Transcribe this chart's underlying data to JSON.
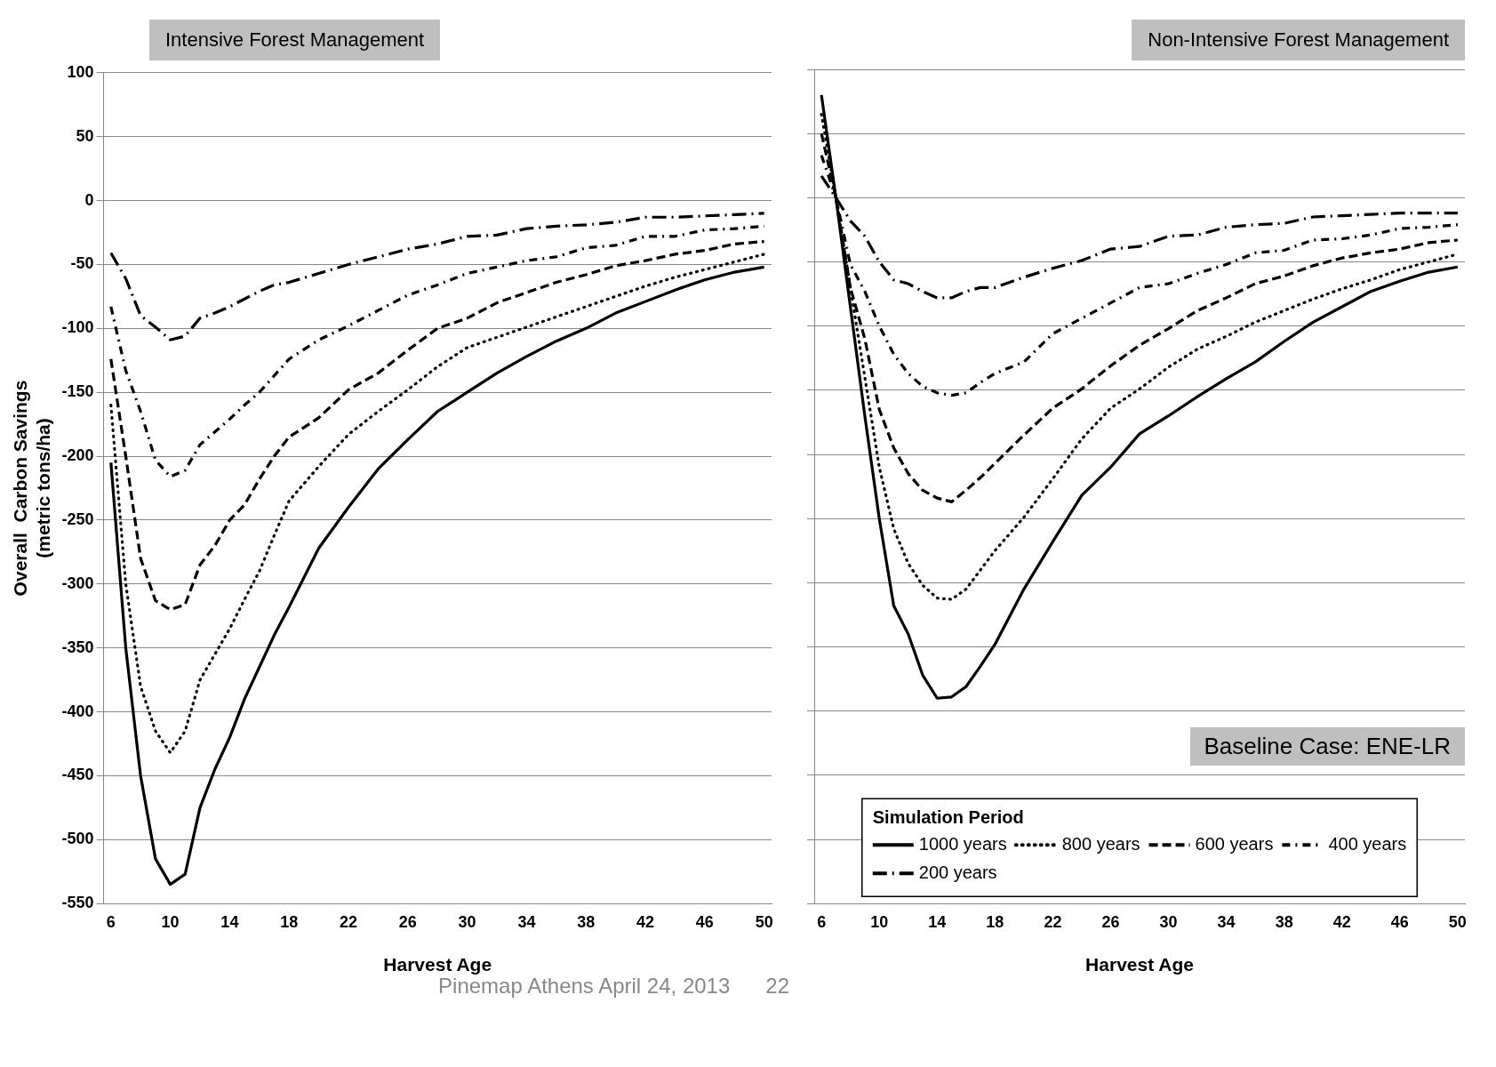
{
  "chart_data": [
    {
      "type": "line",
      "title": "Intensive Forest Management",
      "xlabel": "Harvest Age",
      "ylabel": "Overall  Carbon Savings\n(metric tons/ha)",
      "x": [
        6,
        7,
        8,
        9,
        10,
        11,
        12,
        13,
        14,
        15,
        16,
        17,
        18,
        20,
        22,
        24,
        26,
        28,
        30,
        32,
        34,
        36,
        38,
        40,
        42,
        44,
        46,
        48,
        50
      ],
      "xlim": [
        5.5,
        50.5
      ],
      "xticks": [
        6,
        10,
        14,
        18,
        22,
        26,
        30,
        34,
        38,
        42,
        46,
        50
      ],
      "ylim": [
        -550,
        100
      ],
      "yticks": [
        -550,
        -500,
        -450,
        -400,
        -350,
        -300,
        -250,
        -200,
        -150,
        -100,
        -50,
        0,
        50,
        100
      ],
      "grid": "y",
      "annotations": [
        "Pinemap Athens April 24, 2013",
        "22"
      ],
      "series": [
        {
          "color": "#000000",
          "line_style": "solid",
          "values": [
            -205,
            -350,
            -450,
            -515,
            -535,
            -527,
            -475,
            -445,
            -420,
            -390,
            -365,
            -340,
            -318,
            -272,
            -240,
            -210,
            -187,
            -165,
            -150,
            -135,
            -122,
            -110,
            -100,
            -88,
            -79,
            -70,
            -62,
            -56,
            -52
          ]
        },
        {
          "color": "#000000",
          "line_style": "dotted",
          "values": [
            -160,
            -300,
            -380,
            -415,
            -432,
            -415,
            -375,
            -355,
            -335,
            -312,
            -290,
            -262,
            -235,
            -208,
            -183,
            -165,
            -148,
            -130,
            -115,
            -107,
            -99,
            -91,
            -83,
            -75,
            -67,
            -60,
            -54,
            -48,
            -42
          ]
        },
        {
          "color": "#000000",
          "line_style": "dashed",
          "values": [
            -124,
            -200,
            -280,
            -313,
            -320,
            -316,
            -285,
            -270,
            -250,
            -238,
            -218,
            -200,
            -185,
            -170,
            -148,
            -135,
            -117,
            -100,
            -92,
            -80,
            -72,
            -64,
            -58,
            -51,
            -47,
            -42,
            -39,
            -34,
            -32
          ]
        },
        {
          "color": "#000000",
          "line_style": "dashdot",
          "values": [
            -83,
            -133,
            -165,
            -203,
            -216,
            -211,
            -191,
            -181,
            -171,
            -160,
            -150,
            -137,
            -124,
            -109,
            -98,
            -86,
            -74,
            -66,
            -57,
            -52,
            -47,
            -44,
            -37,
            -35,
            -28,
            -28,
            -23,
            -22,
            -20
          ]
        },
        {
          "color": "#000000",
          "line_style": "longdashdot",
          "values": [
            -41,
            -61,
            -90,
            -99,
            -109,
            -106,
            -92,
            -88,
            -83,
            -77,
            -71,
            -66,
            -64,
            -57,
            -50,
            -44,
            -38,
            -34,
            -28,
            -27,
            -22,
            -20,
            -19,
            -17,
            -13,
            -13,
            -12,
            -11,
            -10
          ]
        }
      ]
    },
    {
      "type": "line",
      "title": "Non-Intensive Forest Management",
      "xlabel": "Harvest Age",
      "x": [
        6,
        7,
        8,
        9,
        10,
        11,
        12,
        13,
        14,
        15,
        16,
        17,
        18,
        20,
        22,
        24,
        26,
        28,
        30,
        32,
        34,
        36,
        38,
        40,
        42,
        44,
        46,
        48,
        50
      ],
      "xlim": [
        5.5,
        50.5
      ],
      "xticks": [
        6,
        10,
        14,
        18,
        22,
        26,
        30,
        34,
        38,
        42,
        46,
        50
      ],
      "ylim": [
        -550,
        100
      ],
      "yticks": [
        -550,
        -500,
        -450,
        -400,
        -350,
        -300,
        -250,
        -200,
        -150,
        -100,
        -50,
        0,
        50,
        100
      ],
      "tick_labels": "x",
      "grid": "y",
      "legend": "bottom",
      "legend_title": "Simulation Period",
      "annotations": [
        "Baseline Case:  ENE-LR"
      ],
      "series": [
        {
          "name": "1000 years",
          "color": "#000000",
          "line_style": "solid",
          "values": [
            80,
            0,
            -85,
            -170,
            -250,
            -318,
            -340,
            -372,
            -390,
            -389,
            -381,
            -365,
            -348,
            -305,
            -268,
            -232,
            -210,
            -184,
            -170,
            -155,
            -141,
            -128,
            -112,
            -97,
            -85,
            -73,
            -65,
            -58,
            -54
          ]
        },
        {
          "name": "800 years",
          "color": "#000000",
          "line_style": "dotted",
          "values": [
            65,
            0,
            -70,
            -140,
            -210,
            -258,
            -285,
            -302,
            -312,
            -313,
            -305,
            -290,
            -275,
            -249,
            -219,
            -188,
            -164,
            -149,
            -132,
            -118,
            -108,
            -97,
            -88,
            -79,
            -71,
            -64,
            -56,
            -50,
            -44
          ]
        },
        {
          "name": "600 years",
          "color": "#000000",
          "line_style": "dashed",
          "values": [
            50,
            0,
            -70,
            -110,
            -165,
            -195,
            -215,
            -228,
            -234,
            -237,
            -228,
            -218,
            -207,
            -185,
            -164,
            -149,
            -131,
            -115,
            -102,
            -88,
            -78,
            -67,
            -61,
            -53,
            -47,
            -43,
            -40,
            -35,
            -33
          ]
        },
        {
          "name": "400 years",
          "color": "#000000",
          "line_style": "dashdot",
          "values": [
            33,
            0,
            -52,
            -73,
            -100,
            -122,
            -137,
            -147,
            -152,
            -154,
            -152,
            -144,
            -137,
            -128,
            -106,
            -94,
            -82,
            -70,
            -67,
            -59,
            -52,
            -43,
            -41,
            -33,
            -32,
            -29,
            -24,
            -23,
            -21
          ]
        },
        {
          "name": "200 years",
          "color": "#000000",
          "line_style": "longdashdot",
          "values": [
            17,
            0,
            -18,
            -30,
            -50,
            -64,
            -67,
            -73,
            -78,
            -78,
            -73,
            -70,
            -70,
            -62,
            -55,
            -49,
            -40,
            -38,
            -30,
            -29,
            -23,
            -21,
            -20,
            -15,
            -14,
            -13,
            -12,
            -12,
            -12
          ]
        }
      ]
    }
  ]
}
